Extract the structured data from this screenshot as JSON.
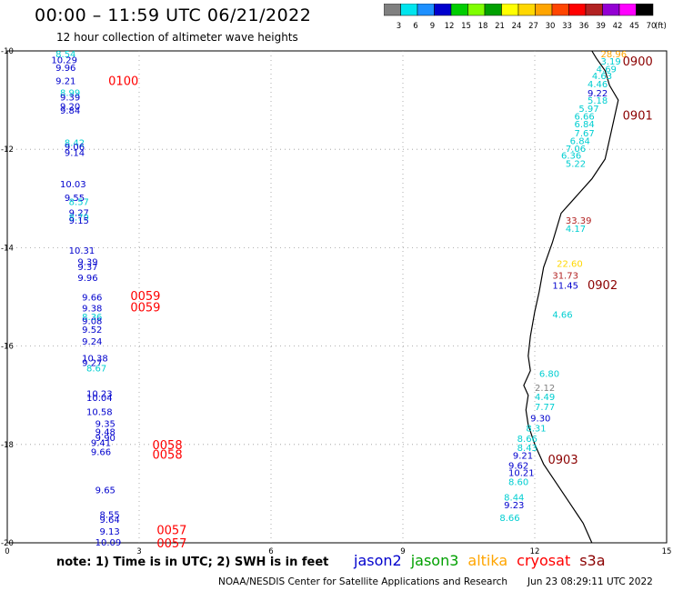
{
  "title": "00:00 – 11:59 UTC 06/21/2022",
  "subtitle": "12 hour collection of altimeter wave heights",
  "scale": {
    "labels": [
      "3",
      "6",
      "9",
      "12",
      "15",
      "18",
      "21",
      "24",
      "27",
      "30",
      "33",
      "36",
      "39",
      "42",
      "45",
      "70"
    ],
    "unit": "(ft)",
    "colors": [
      "#808080",
      "#00e5ee",
      "#1e90ff",
      "#0000cd",
      "#00cd00",
      "#7fff00",
      "#00a000",
      "#ffff00",
      "#ffd700",
      "#ffa500",
      "#ff4500",
      "#ff0000",
      "#b22222",
      "#9400d3",
      "#ff00ff",
      "#000000"
    ]
  },
  "note": "note:  1) Time is in UTC;  2) SWH is in feet",
  "satellites": [
    {
      "name": "jason2",
      "color": "#0000cd"
    },
    {
      "name": "jason3",
      "color": "#00a000"
    },
    {
      "name": "altika",
      "color": "#ffa500"
    },
    {
      "name": "cryosat",
      "color": "#ff0000"
    },
    {
      "name": "s3a",
      "color": "#8b0000"
    }
  ],
  "credit": "NOAA/NESDIS Center for Satellite Applications and Research",
  "timestamp": "Jun 23 08:29:11 UTC 2022",
  "map": {
    "lon_range": [
      0,
      15
    ],
    "lat_range": [
      -20,
      -10
    ],
    "x_ticks": [
      "0",
      "3",
      "6",
      "9",
      "12",
      "15"
    ],
    "y_ticks": [
      "-10",
      "-12",
      "-14",
      "-16",
      "-18",
      "-20"
    ]
  },
  "time_labels": [
    {
      "text": "0100",
      "lon": 2.3,
      "lat": -10.6,
      "color": "#ff0000"
    },
    {
      "text": "0059",
      "lon": 2.8,
      "lat": -14.97,
      "color": "#ff0000"
    },
    {
      "text": "0059",
      "lon": 2.8,
      "lat": -15.2,
      "color": "#ff0000"
    },
    {
      "text": "0058",
      "lon": 3.3,
      "lat": -18.0,
      "color": "#ff0000"
    },
    {
      "text": "0058",
      "lon": 3.3,
      "lat": -18.2,
      "color": "#ff0000"
    },
    {
      "text": "0057",
      "lon": 3.4,
      "lat": -19.73,
      "color": "#ff0000"
    },
    {
      "text": "0057",
      "lon": 3.4,
      "lat": -20.0,
      "color": "#ff0000"
    },
    {
      "text": "0900",
      "lon": 14.0,
      "lat": -10.2,
      "color": "#8b0000"
    },
    {
      "text": "0901",
      "lon": 14.0,
      "lat": -11.3,
      "color": "#8b0000"
    },
    {
      "text": "0902",
      "lon": 13.2,
      "lat": -14.75,
      "color": "#8b0000"
    },
    {
      "text": "0903",
      "lon": 12.3,
      "lat": -18.3,
      "color": "#8b0000"
    }
  ],
  "observations": [
    {
      "text": "8.54",
      "lon": 1.1,
      "lat": -10.06,
      "color": "#00ced1"
    },
    {
      "text": "10.29",
      "lon": 1.0,
      "lat": -10.18,
      "color": "#0000cd"
    },
    {
      "text": "9.96",
      "lon": 1.1,
      "lat": -10.33,
      "color": "#0000cd"
    },
    {
      "text": "9.21",
      "lon": 1.1,
      "lat": -10.6,
      "color": "#0000cd"
    },
    {
      "text": "8.99",
      "lon": 1.2,
      "lat": -10.84,
      "color": "#00ced1"
    },
    {
      "text": "9.39",
      "lon": 1.2,
      "lat": -10.93,
      "color": "#0000cd"
    },
    {
      "text": "9.20",
      "lon": 1.2,
      "lat": -11.12,
      "color": "#0000cd"
    },
    {
      "text": "9.84",
      "lon": 1.2,
      "lat": -11.2,
      "color": "#0000cd"
    },
    {
      "text": "8.42",
      "lon": 1.3,
      "lat": -11.86,
      "color": "#00ced1"
    },
    {
      "text": "9.06",
      "lon": 1.3,
      "lat": -11.94,
      "color": "#0000cd"
    },
    {
      "text": "9.14",
      "lon": 1.3,
      "lat": -12.06,
      "color": "#0000cd"
    },
    {
      "text": "10.03",
      "lon": 1.2,
      "lat": -12.7,
      "color": "#0000cd"
    },
    {
      "text": "9.55",
      "lon": 1.3,
      "lat": -12.98,
      "color": "#0000cd"
    },
    {
      "text": "8.57",
      "lon": 1.4,
      "lat": -13.06,
      "color": "#00ced1"
    },
    {
      "text": "9.27",
      "lon": 1.4,
      "lat": -13.28,
      "color": "#0000cd"
    },
    {
      "text": "8.79",
      "lon": 1.4,
      "lat": -13.37,
      "color": "#00ced1"
    },
    {
      "text": "9.15",
      "lon": 1.4,
      "lat": -13.44,
      "color": "#0000cd"
    },
    {
      "text": "10.31",
      "lon": 1.4,
      "lat": -14.05,
      "color": "#0000cd"
    },
    {
      "text": "9.39",
      "lon": 1.6,
      "lat": -14.28,
      "color": "#0000cd"
    },
    {
      "text": "9.37",
      "lon": 1.6,
      "lat": -14.38,
      "color": "#0000cd"
    },
    {
      "text": "9.96",
      "lon": 1.6,
      "lat": -14.6,
      "color": "#0000cd"
    },
    {
      "text": "9.66",
      "lon": 1.7,
      "lat": -15.0,
      "color": "#0000cd"
    },
    {
      "text": "9.38",
      "lon": 1.7,
      "lat": -15.22,
      "color": "#0000cd"
    },
    {
      "text": "8.36",
      "lon": 1.7,
      "lat": -15.4,
      "color": "#00ced1"
    },
    {
      "text": "9.08",
      "lon": 1.7,
      "lat": -15.48,
      "color": "#0000cd"
    },
    {
      "text": "9.52",
      "lon": 1.7,
      "lat": -15.66,
      "color": "#0000cd"
    },
    {
      "text": "9.24",
      "lon": 1.7,
      "lat": -15.9,
      "color": "#0000cd"
    },
    {
      "text": "10.38",
      "lon": 1.7,
      "lat": -16.24,
      "color": "#0000cd"
    },
    {
      "text": "9.27",
      "lon": 1.7,
      "lat": -16.33,
      "color": "#0000cd"
    },
    {
      "text": "8.67",
      "lon": 1.8,
      "lat": -16.44,
      "color": "#00ced1"
    },
    {
      "text": "10.23",
      "lon": 1.8,
      "lat": -16.96,
      "color": "#0000cd"
    },
    {
      "text": "10.04",
      "lon": 1.8,
      "lat": -17.04,
      "color": "#0000cd"
    },
    {
      "text": "10.58",
      "lon": 1.8,
      "lat": -17.33,
      "color": "#0000cd"
    },
    {
      "text": "9.35",
      "lon": 2.0,
      "lat": -17.57,
      "color": "#0000cd"
    },
    {
      "text": "9.48",
      "lon": 2.0,
      "lat": -17.74,
      "color": "#0000cd"
    },
    {
      "text": "9.90",
      "lon": 2.0,
      "lat": -17.86,
      "color": "#0000cd"
    },
    {
      "text": "9.41",
      "lon": 1.9,
      "lat": -17.96,
      "color": "#0000cd"
    },
    {
      "text": "9.66",
      "lon": 1.9,
      "lat": -18.14,
      "color": "#0000cd"
    },
    {
      "text": "9.65",
      "lon": 2.0,
      "lat": -18.92,
      "color": "#0000cd"
    },
    {
      "text": "8.55",
      "lon": 2.1,
      "lat": -19.42,
      "color": "#0000cd"
    },
    {
      "text": "9.64",
      "lon": 2.1,
      "lat": -19.52,
      "color": "#0000cd"
    },
    {
      "text": "9.13",
      "lon": 2.1,
      "lat": -19.76,
      "color": "#0000cd"
    },
    {
      "text": "10.09",
      "lon": 2.0,
      "lat": -19.98,
      "color": "#0000cd"
    },
    {
      "text": "28.96",
      "lon": 13.5,
      "lat": -10.06,
      "color": "#ffa500"
    },
    {
      "text": "3.19",
      "lon": 13.5,
      "lat": -10.2,
      "color": "#00ced1"
    },
    {
      "text": "4.69",
      "lon": 13.4,
      "lat": -10.36,
      "color": "#00ced1"
    },
    {
      "text": "4.63",
      "lon": 13.3,
      "lat": -10.5,
      "color": "#00ced1"
    },
    {
      "text": "4.46",
      "lon": 13.2,
      "lat": -10.67,
      "color": "#00ced1"
    },
    {
      "text": "9.22",
      "lon": 13.2,
      "lat": -10.85,
      "color": "#0000cd"
    },
    {
      "text": "5.18",
      "lon": 13.2,
      "lat": -11.0,
      "color": "#00ced1"
    },
    {
      "text": "5.97",
      "lon": 13.0,
      "lat": -11.16,
      "color": "#00ced1"
    },
    {
      "text": "6.66",
      "lon": 12.9,
      "lat": -11.32,
      "color": "#00ced1"
    },
    {
      "text": "6.84",
      "lon": 12.9,
      "lat": -11.48,
      "color": "#00ced1"
    },
    {
      "text": "7.67",
      "lon": 12.9,
      "lat": -11.66,
      "color": "#00ced1"
    },
    {
      "text": "6.84",
      "lon": 12.8,
      "lat": -11.82,
      "color": "#00ced1"
    },
    {
      "text": "7.06",
      "lon": 12.7,
      "lat": -11.98,
      "color": "#00ced1"
    },
    {
      "text": "6.36",
      "lon": 12.6,
      "lat": -12.12,
      "color": "#00ced1"
    },
    {
      "text": "5.22",
      "lon": 12.7,
      "lat": -12.28,
      "color": "#00ced1"
    },
    {
      "text": "33.39",
      "lon": 12.7,
      "lat": -13.44,
      "color": "#b22222"
    },
    {
      "text": "4.17",
      "lon": 12.7,
      "lat": -13.6,
      "color": "#00ced1"
    },
    {
      "text": "22.60",
      "lon": 12.5,
      "lat": -14.32,
      "color": "#ffd700"
    },
    {
      "text": "31.73",
      "lon": 12.4,
      "lat": -14.56,
      "color": "#b22222"
    },
    {
      "text": "11.45",
      "lon": 12.4,
      "lat": -14.76,
      "color": "#0000cd"
    },
    {
      "text": "4.66",
      "lon": 12.4,
      "lat": -15.35,
      "color": "#00ced1"
    },
    {
      "text": "6.80",
      "lon": 12.1,
      "lat": -16.55,
      "color": "#00ced1"
    },
    {
      "text": "2.12",
      "lon": 12.0,
      "lat": -16.84,
      "color": "#808080"
    },
    {
      "text": "4.49",
      "lon": 12.0,
      "lat": -17.02,
      "color": "#00ced1"
    },
    {
      "text": "7.77",
      "lon": 12.0,
      "lat": -17.23,
      "color": "#00ced1"
    },
    {
      "text": "9.30",
      "lon": 11.9,
      "lat": -17.46,
      "color": "#0000cd"
    },
    {
      "text": "8.31",
      "lon": 11.8,
      "lat": -17.66,
      "color": "#00ced1"
    },
    {
      "text": "8.66",
      "lon": 11.6,
      "lat": -17.87,
      "color": "#00ced1"
    },
    {
      "text": "8.43",
      "lon": 11.6,
      "lat": -18.06,
      "color": "#00ced1"
    },
    {
      "text": "9.21",
      "lon": 11.5,
      "lat": -18.22,
      "color": "#0000cd"
    },
    {
      "text": "9.62",
      "lon": 11.4,
      "lat": -18.42,
      "color": "#0000cd"
    },
    {
      "text": "10.21",
      "lon": 11.4,
      "lat": -18.57,
      "color": "#0000cd"
    },
    {
      "text": "8.60",
      "lon": 11.4,
      "lat": -18.75,
      "color": "#00ced1"
    },
    {
      "text": "8.44",
      "lon": 11.3,
      "lat": -19.07,
      "color": "#00ced1"
    },
    {
      "text": "9.23",
      "lon": 11.3,
      "lat": -19.22,
      "color": "#0000cd"
    },
    {
      "text": "8.66",
      "lon": 11.2,
      "lat": -19.48,
      "color": "#00ced1"
    }
  ],
  "coastline": [
    [
      13.3,
      -10.0
    ],
    [
      13.4,
      -10.15
    ],
    [
      13.6,
      -10.4
    ],
    [
      13.7,
      -10.7
    ],
    [
      13.9,
      -11.0
    ],
    [
      13.8,
      -11.4
    ],
    [
      13.7,
      -11.8
    ],
    [
      13.6,
      -12.2
    ],
    [
      13.3,
      -12.6
    ],
    [
      12.9,
      -13.0
    ],
    [
      12.6,
      -13.3
    ],
    [
      12.4,
      -13.9
    ],
    [
      12.2,
      -14.4
    ],
    [
      12.1,
      -14.9
    ],
    [
      12.0,
      -15.3
    ],
    [
      11.9,
      -15.8
    ],
    [
      11.85,
      -16.2
    ],
    [
      11.9,
      -16.5
    ],
    [
      11.75,
      -16.8
    ],
    [
      11.85,
      -17.0
    ],
    [
      11.8,
      -17.3
    ],
    [
      11.85,
      -17.6
    ],
    [
      12.0,
      -18.0
    ],
    [
      12.2,
      -18.4
    ],
    [
      12.5,
      -18.8
    ],
    [
      12.8,
      -19.2
    ],
    [
      13.1,
      -19.6
    ],
    [
      13.3,
      -20.0
    ]
  ]
}
